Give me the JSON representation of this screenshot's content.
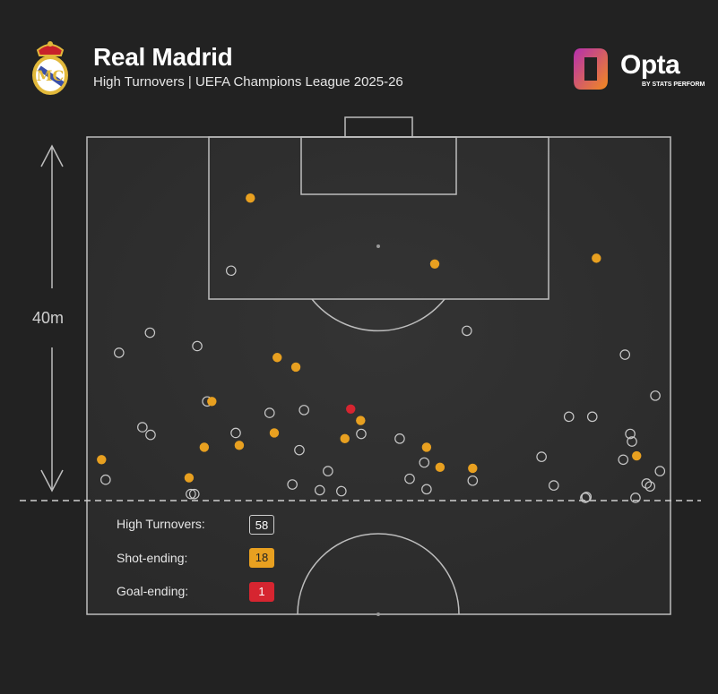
{
  "header": {
    "team": "Real Madrid",
    "subtitle": "High Turnovers | UEFA Champions League 2025-26",
    "brand": "Opta",
    "brand_sub": "BY STATS PERFORM"
  },
  "colors": {
    "background": "#222222",
    "pitch": "#2d2d2d",
    "lines": "#bdbdbd",
    "shot": "#e8a020",
    "goal": "#d62530",
    "crest_gold": "#e2b93b",
    "opta_purple": "#b52fb0",
    "opta_orange": "#f28a1e"
  },
  "chart_data": {
    "type": "scatter",
    "title": "High Turnovers",
    "pitch_units": "Opta coordinates (x = length toward goal, y = lateral 0-100)",
    "distance_marker": "40m",
    "legend": [
      {
        "label": "High Turnovers:",
        "value": "58",
        "style": "total"
      },
      {
        "label": "Shot-ending:",
        "value": "18",
        "style": "shot"
      },
      {
        "label": "Goal-ending:",
        "value": "1",
        "style": "goal"
      }
    ],
    "points": {
      "turnover": [
        [
          79.5,
          10.8
        ],
        [
          77.4,
          5.5
        ],
        [
          78.1,
          18.9
        ],
        [
          79.7,
          65.1
        ],
        [
          77.2,
          92.2
        ],
        [
          72.9,
          97.4
        ],
        [
          72.3,
          20.6
        ],
        [
          71.1,
          31.3
        ],
        [
          71.4,
          37.2
        ],
        [
          69.6,
          9.5
        ],
        [
          68.8,
          10.9
        ],
        [
          69.0,
          25.5
        ],
        [
          68.9,
          47.0
        ],
        [
          68.4,
          53.6
        ],
        [
          67.2,
          36.4
        ],
        [
          70.7,
          82.6
        ],
        [
          70.7,
          86.6
        ],
        [
          68.9,
          93.1
        ],
        [
          68.1,
          93.4
        ],
        [
          66.5,
          77.9
        ],
        [
          66.2,
          91.9
        ],
        [
          65.9,
          57.8
        ],
        [
          65.0,
          41.3
        ],
        [
          65.0,
          98.2
        ],
        [
          64.1,
          3.2
        ],
        [
          64.2,
          55.3
        ],
        [
          64.0,
          66.1
        ],
        [
          63.6,
          35.2
        ],
        [
          63.0,
          39.9
        ],
        [
          62.9,
          43.6
        ],
        [
          63.1,
          58.2
        ],
        [
          63.5,
          80.0
        ],
        [
          63.7,
          95.9
        ],
        [
          63.4,
          96.5
        ],
        [
          62.6,
          17.8
        ],
        [
          62.6,
          18.4
        ],
        [
          62.2,
          85.4
        ],
        [
          62.3,
          85.6
        ],
        [
          62.2,
          94.0
        ],
        [
          86.0,
          24.7
        ]
      ],
      "shot_ending": [
        [
          76.9,
          32.6
        ],
        [
          75.9,
          35.8
        ],
        [
          72.3,
          21.4
        ],
        [
          70.3,
          46.9
        ],
        [
          69.0,
          32.1
        ],
        [
          67.5,
          20.1
        ],
        [
          67.7,
          26.1
        ],
        [
          68.4,
          44.2
        ],
        [
          67.5,
          58.2
        ],
        [
          66.2,
          2.5
        ],
        [
          64.3,
          17.5
        ],
        [
          65.4,
          60.5
        ],
        [
          65.3,
          66.1
        ],
        [
          66.6,
          94.2
        ],
        [
          93.6,
          28.0
        ],
        [
          86.7,
          59.6
        ],
        [
          87.3,
          87.3
        ]
      ],
      "goal_ending": [
        [
          71.5,
          45.2
        ]
      ]
    }
  }
}
